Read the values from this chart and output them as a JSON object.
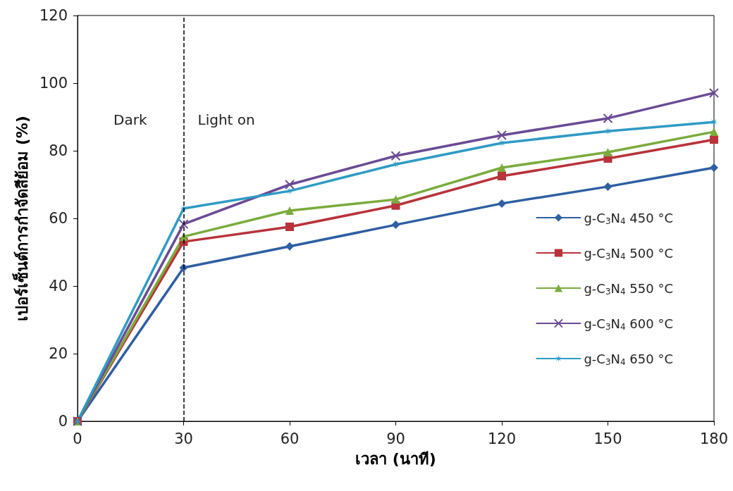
{
  "chart_data": {
    "type": "line",
    "xlabel": "เวลา (นาที)",
    "ylabel": "เปอร์เซ็นต์การกำจัดสีย้อม (%)",
    "x": [
      0,
      30,
      60,
      90,
      120,
      150,
      180
    ],
    "xlim": [
      0,
      180
    ],
    "xticks": [
      0,
      30,
      60,
      90,
      120,
      150,
      180
    ],
    "ylim": [
      0,
      120
    ],
    "yticks": [
      0,
      20,
      40,
      60,
      80,
      100,
      120
    ],
    "grid": false,
    "legend": "right",
    "line_style": "solid",
    "series": [
      {
        "name": "g-C$_{3}$N$_{4}$ 450 °C",
        "color": "#2e5fa3",
        "marker": "diamond",
        "values": [
          0,
          45.4,
          51.7,
          58.1,
          64.4,
          69.4,
          75
        ]
      },
      {
        "name": "g-C$_{3}$N$_{4}$ 500 °C",
        "color": "#b8333a",
        "marker": "square",
        "values": [
          0,
          53.1,
          57.5,
          63.8,
          72.5,
          77.7,
          83.3
        ]
      },
      {
        "name": "g-C$_{3}$N$_{4}$ 550 °C",
        "color": "#7aab3c",
        "marker": "triangle",
        "values": [
          0,
          54.6,
          62.3,
          65.6,
          75,
          79.6,
          85.6
        ]
      },
      {
        "name": "g-C$_{3}$N$_{4}$ 600 °C",
        "color": "#6a4b94",
        "marker": "cross",
        "values": [
          0,
          58.3,
          70,
          78.5,
          84.6,
          89.6,
          97.1
        ]
      },
      {
        "name": "g-C$_{3}$N$_{4}$ 650 °C",
        "color": "#2e9bc4",
        "marker": "star",
        "values": [
          0,
          62.9,
          68.1,
          76,
          82.3,
          85.8,
          88.5
        ]
      }
    ],
    "ref_lines": [
      {
        "axis": "x",
        "value": 30,
        "color": "#000000",
        "line_style": "dashed"
      }
    ],
    "annotations": [
      "Dark",
      "Light on"
    ]
  }
}
